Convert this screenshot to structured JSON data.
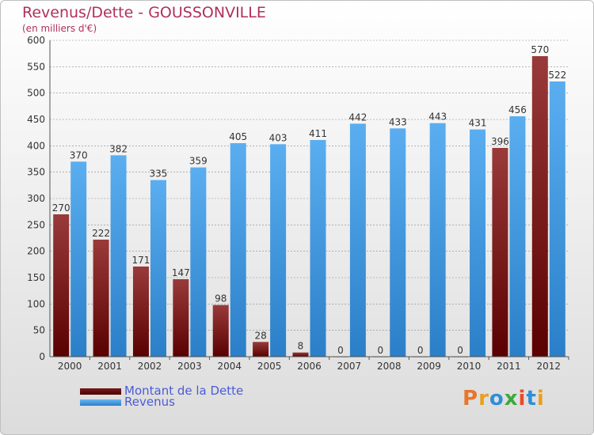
{
  "page": {
    "title": "Revenus/Dette - GOUSSONVILLE",
    "subtitle": "(en milliers d'€)"
  },
  "colors": {
    "title": "#b0305a",
    "debt_top": "#9a3a3a",
    "debt_bottom": "#5a0000",
    "revenue_top": "#5aaef0",
    "revenue_bottom": "#2a7fc8",
    "legend_text": "#4a5bd8",
    "grid": "#8a8a8a"
  },
  "legend": [
    {
      "label": "Montant de la Dette",
      "color": "#6a0e0e"
    },
    {
      "label": "Revenus",
      "color": "#4aa3e8"
    }
  ],
  "logo": {
    "text": "Proxiti"
  },
  "chart_data": {
    "type": "bar",
    "title": "Revenus/Dette - GOUSSONVILLE",
    "subtitle": "(en milliers d'€)",
    "xlabel": "",
    "ylabel": "",
    "ylim": [
      0,
      600
    ],
    "yticks": [
      0,
      50,
      100,
      150,
      200,
      250,
      300,
      350,
      400,
      450,
      500,
      550,
      600
    ],
    "grid": true,
    "legend_position": "bottom-left",
    "categories": [
      "2000",
      "2001",
      "2002",
      "2003",
      "2004",
      "2005",
      "2006",
      "2007",
      "2008",
      "2009",
      "2010",
      "2011",
      "2012"
    ],
    "series": [
      {
        "name": "Montant de la Dette",
        "values": [
          270,
          222,
          171,
          147,
          98,
          28,
          8,
          0,
          0,
          0,
          0,
          396,
          570
        ]
      },
      {
        "name": "Revenus",
        "values": [
          370,
          382,
          335,
          359,
          405,
          403,
          411,
          442,
          433,
          443,
          431,
          456,
          522
        ]
      }
    ]
  }
}
